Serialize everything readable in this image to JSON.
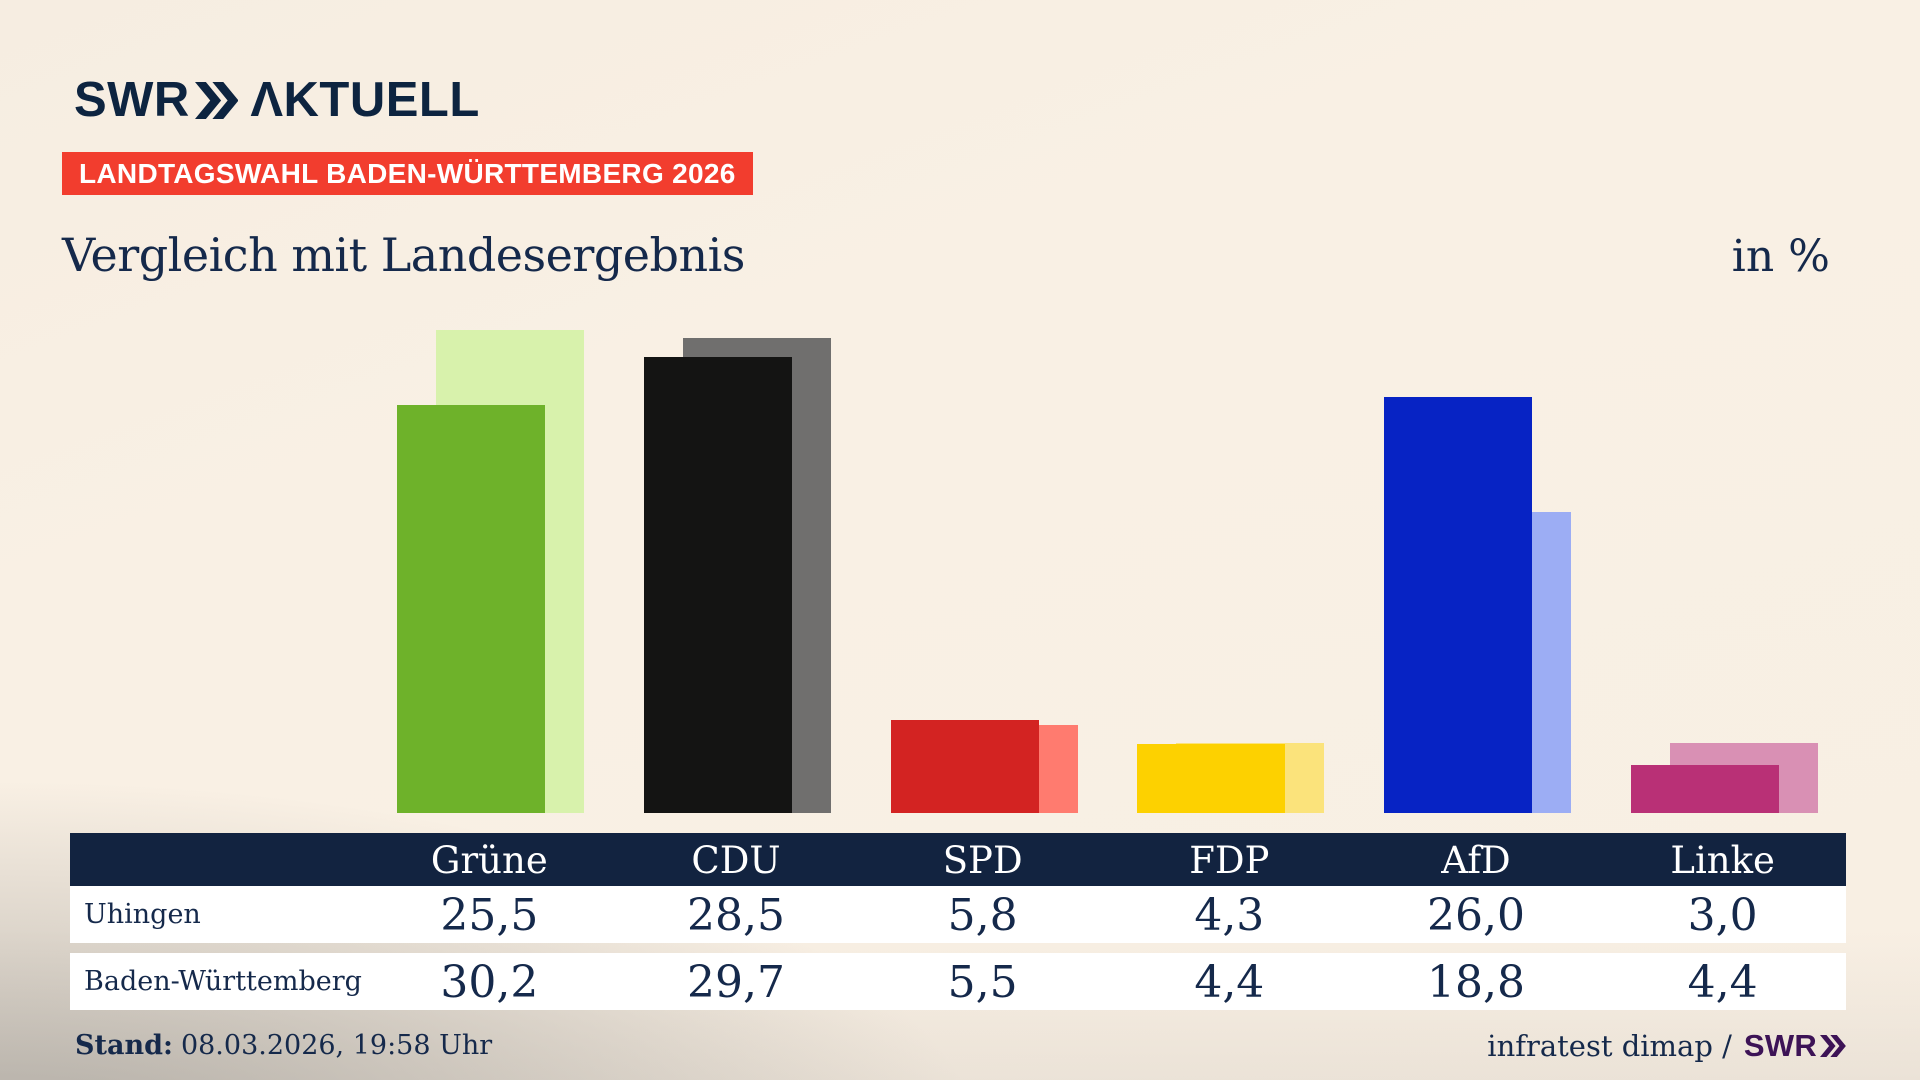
{
  "header": {
    "logo": {
      "swr": "SWR",
      "aktuell": "ΛKTUELL",
      "chevron_icon": "double-chevron-right"
    },
    "badge": "LANDTAGSWAHL BADEN-WÜRTTEMBERG 2026",
    "title": "Vergleich mit Landesergebnis",
    "unit_label": "in %"
  },
  "chart_data": {
    "type": "bar",
    "title": "Vergleich mit Landesergebnis",
    "unit": "%",
    "categories": [
      "Grüne",
      "CDU",
      "SPD",
      "FDP",
      "AfD",
      "Linke"
    ],
    "series": [
      {
        "name": "Uhingen",
        "values": [
          25.5,
          28.5,
          5.8,
          4.3,
          26.0,
          3.0
        ]
      },
      {
        "name": "Baden-Württemberg",
        "values": [
          30.2,
          29.7,
          5.5,
          4.4,
          18.8,
          4.4
        ]
      }
    ],
    "colors": {
      "front": [
        "#6eb22a",
        "#141413",
        "#d32322",
        "#fdd100",
        "#0723c4",
        "#b93076"
      ],
      "back": [
        "#d8f2ac",
        "#706f6e",
        "#ff7b6f",
        "#fbe37b",
        "#9cadf4",
        "#d990b4"
      ]
    },
    "ylim": [
      0,
      31
    ],
    "grid": false,
    "legend": "table-below",
    "value_format": "comma-decimal"
  },
  "table": {
    "columns": [
      "Grüne",
      "CDU",
      "SPD",
      "FDP",
      "AfD",
      "Linke"
    ],
    "rows": [
      {
        "label": "Uhingen",
        "values": [
          "25,5",
          "28,5",
          "5,8",
          "4,3",
          "26,0",
          "3,0"
        ]
      },
      {
        "label": "Baden-Württemberg",
        "values": [
          "30,2",
          "29,7",
          "5,5",
          "4,4",
          "18,8",
          "4,4"
        ]
      }
    ]
  },
  "footer": {
    "stand_label": "Stand:",
    "stand_value": "08.03.2026, 19:58 Uhr",
    "source": "infratest dimap /",
    "source_logo": "SWR",
    "source_logo_chevron_icon": "double-chevron-right"
  },
  "colors": {
    "background": "#f8efe3",
    "background_corner": "#bdbab5",
    "navy": "#15294b",
    "table_header_bg": "#122340",
    "badge_red": "#f23d2e",
    "swr_purple": "#3d1356"
  }
}
